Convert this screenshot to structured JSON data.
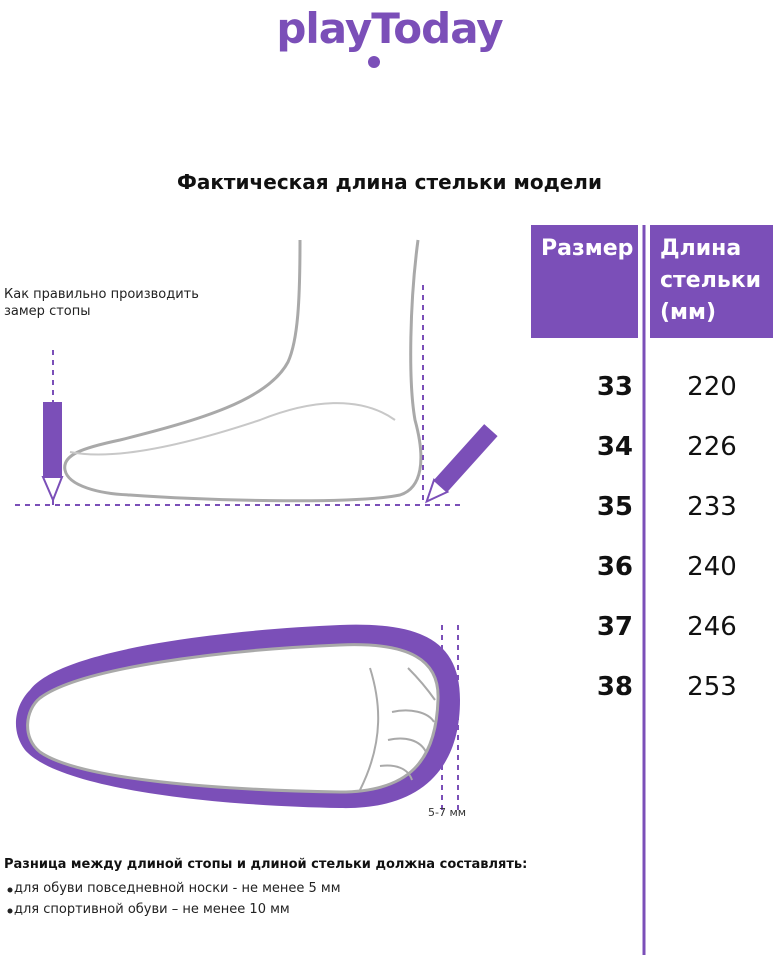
{
  "logo": "playToday",
  "title": "Фактическая длина стельки модели",
  "measure_note": [
    "Как правильно производить",
    "замер стопы"
  ],
  "table": {
    "header": [
      "Размер",
      "Длина стельки (мм)"
    ],
    "rows": [
      [
        33,
        220
      ],
      [
        34,
        226
      ],
      [
        35,
        233
      ],
      [
        36,
        240
      ],
      [
        37,
        246
      ],
      [
        38,
        253
      ]
    ]
  },
  "gap_label": "5-7 мм",
  "note": {
    "title": "Разница между длиной стопы и длиной стельки должна составлять:",
    "items": [
      "для обуви повседневной носки -  не менее 5 мм",
      "для спортивной обуви – не менее 10 мм"
    ]
  }
}
